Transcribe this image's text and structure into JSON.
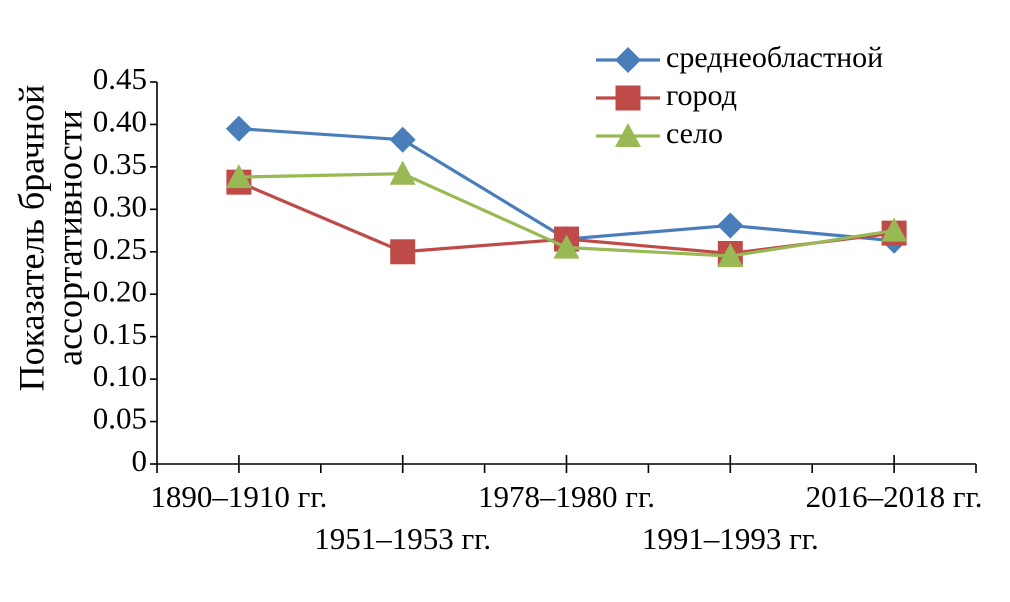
{
  "chart_data": {
    "type": "line",
    "title": "",
    "xlabel": "",
    "ylabel_lines": [
      "Показатель брачной",
      "ассортативности"
    ],
    "ylim": [
      0,
      0.45
    ],
    "yticks": [
      0,
      0.05,
      0.1,
      0.15,
      0.2,
      0.25,
      0.3,
      0.35,
      0.4,
      0.45
    ],
    "ytick_labels": [
      "0",
      "0.05",
      "0.10",
      "0.15",
      "0.20",
      "0.25",
      "0.30",
      "0.35",
      "0.40",
      "0.45"
    ],
    "categories": [
      "1890–1910 гг.",
      "1951–1953 гг.",
      "1978–1980 гг.",
      "1991–1993 гг.",
      "2016–2018 гг."
    ],
    "grid": false,
    "legend_position": "top-right",
    "series": [
      {
        "name": "среднеобластной",
        "color": "#4a7ebb",
        "marker": "diamond",
        "values": [
          0.395,
          0.382,
          0.265,
          0.281,
          0.263
        ]
      },
      {
        "name": "город",
        "color": "#be4b48",
        "marker": "square",
        "values": [
          0.332,
          0.25,
          0.265,
          0.248,
          0.272
        ]
      },
      {
        "name": "село",
        "color": "#98b954",
        "marker": "triangle",
        "values": [
          0.338,
          0.342,
          0.255,
          0.245,
          0.275
        ]
      }
    ]
  }
}
